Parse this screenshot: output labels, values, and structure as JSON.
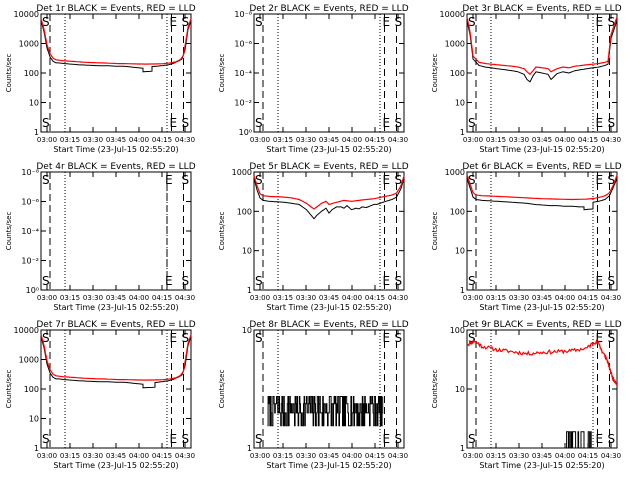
{
  "colors": {
    "events": "#000000",
    "lld": "#ff0000",
    "axes": "#000000"
  },
  "chart_data": [
    {
      "type": "line",
      "title": "Det 1r BLACK = Events, RED = LLD",
      "xlabel": "Start Time (23-Jul-15 02:55:20)",
      "ylabel": "Counts/sec",
      "x_ticks": [
        "03:00",
        "03:15",
        "03:30",
        "03:45",
        "04:00",
        "04:15",
        "04:30"
      ],
      "y_ticks": [
        "1",
        "10",
        "100",
        "1000",
        "10000"
      ],
      "ylim": [
        1,
        10000
      ],
      "yscale": "log",
      "markers": [
        {
          "label": "S",
          "x": 0.02
        },
        {
          "label": "E",
          "x": 0.87
        },
        {
          "label": "S",
          "x": 0.95
        }
      ],
      "series": [
        {
          "name": "Events",
          "x": [
            0,
            0.02,
            0.04,
            0.06,
            0.08,
            0.1,
            0.12,
            0.15,
            0.2,
            0.25,
            0.3,
            0.35,
            0.4,
            0.45,
            0.5,
            0.55,
            0.6,
            0.65,
            0.68,
            0.68,
            0.74,
            0.74,
            0.8,
            0.85,
            0.88,
            0.92,
            0.94,
            0.96,
            0.98,
            1
          ],
          "y": [
            6000,
            2500,
            700,
            350,
            250,
            220,
            220,
            210,
            200,
            190,
            185,
            180,
            175,
            175,
            170,
            170,
            160,
            150,
            145,
            110,
            115,
            165,
            175,
            190,
            210,
            260,
            300,
            600,
            3000,
            6000
          ]
        },
        {
          "name": "LLD",
          "x": [
            0,
            0.02,
            0.04,
            0.06,
            0.08,
            0.1,
            0.15,
            0.2,
            0.25,
            0.3,
            0.4,
            0.5,
            0.6,
            0.7,
            0.8,
            0.85,
            0.9,
            0.93,
            0.95,
            0.98,
            1
          ],
          "y": [
            7000,
            3000,
            900,
            450,
            320,
            280,
            260,
            250,
            240,
            230,
            220,
            210,
            205,
            200,
            205,
            215,
            240,
            290,
            400,
            3500,
            7000
          ]
        }
      ]
    },
    {
      "type": "line",
      "title": "Det 2r BLACK = Events, RED = LLD",
      "xlabel": "Start Time (23-Jul-15 02:55:20)",
      "ylabel": "Counts/sec",
      "x_ticks": [
        "03:00",
        "03:15",
        "03:30",
        "03:45",
        "04:00",
        "04:15",
        "04:30"
      ],
      "y_ticks": [
        "10⁰",
        "10⁻²",
        "10⁻⁴",
        "10⁻⁶",
        "10⁻⁸"
      ],
      "ylim": [
        1e-08,
        1
      ],
      "yscale": "log",
      "markers": [
        {
          "label": "S",
          "x": 0.02
        },
        {
          "label": "E",
          "x": 0.87
        },
        {
          "label": "S",
          "x": 0.95
        }
      ],
      "series": []
    },
    {
      "type": "line",
      "title": "Det 3r BLACK = Events, RED = LLD",
      "xlabel": "Start Time (23-Jul-15 02:55:20)",
      "ylabel": "Counts/sec",
      "x_ticks": [
        "03:00",
        "03:15",
        "03:30",
        "03:45",
        "04:00",
        "04:15",
        "04:30"
      ],
      "y_ticks": [
        "1",
        "10",
        "100",
        "1000",
        "10000"
      ],
      "ylim": [
        1,
        10000
      ],
      "yscale": "log",
      "markers": [
        {
          "label": "S",
          "x": 0.02
        },
        {
          "label": "E",
          "x": 0.87
        },
        {
          "label": "S",
          "x": 0.95
        }
      ],
      "series": [
        {
          "name": "Events",
          "x": [
            0,
            0.02,
            0.04,
            0.08,
            0.12,
            0.16,
            0.2,
            0.25,
            0.3,
            0.34,
            0.38,
            0.4,
            0.42,
            0.44,
            0.46,
            0.5,
            0.54,
            0.56,
            0.6,
            0.64,
            0.68,
            0.72,
            0.76,
            0.8,
            0.84,
            0.88,
            0.92,
            0.94,
            0.96,
            1
          ],
          "y": [
            6000,
            2000,
            300,
            180,
            160,
            150,
            140,
            130,
            120,
            110,
            90,
            60,
            50,
            80,
            110,
            100,
            90,
            60,
            95,
            110,
            100,
            120,
            130,
            140,
            150,
            160,
            180,
            200,
            1500,
            6000
          ]
        },
        {
          "name": "LLD",
          "x": [
            0,
            0.02,
            0.04,
            0.08,
            0.12,
            0.16,
            0.2,
            0.25,
            0.3,
            0.34,
            0.38,
            0.4,
            0.42,
            0.44,
            0.46,
            0.5,
            0.54,
            0.56,
            0.6,
            0.64,
            0.68,
            0.72,
            0.76,
            0.8,
            0.84,
            0.88,
            0.92,
            0.94,
            0.96,
            1
          ],
          "y": [
            8000,
            2500,
            380,
            230,
            210,
            200,
            190,
            180,
            170,
            160,
            140,
            110,
            90,
            120,
            160,
            150,
            140,
            110,
            140,
            160,
            150,
            170,
            180,
            190,
            200,
            210,
            230,
            250,
            2000,
            8000
          ]
        }
      ]
    },
    {
      "type": "line",
      "title": "Det 4r BLACK = Events, RED = LLD",
      "xlabel": "Start Time (23-Jul-15 02:55:20)",
      "ylabel": "Counts/sec",
      "x_ticks": [
        "03:00",
        "03:15",
        "03:30",
        "03:45",
        "04:00",
        "04:15",
        "04:30"
      ],
      "y_ticks": [
        "10⁰",
        "10⁻²",
        "10⁻⁴",
        "10⁻⁶",
        "10⁻⁸"
      ],
      "ylim": [
        1e-08,
        1
      ],
      "yscale": "log",
      "markers": [
        {
          "label": "S",
          "x": 0.02
        },
        {
          "label": "E",
          "x": 0.84
        },
        {
          "label": "S",
          "x": 0.95
        }
      ],
      "series": []
    },
    {
      "type": "line",
      "title": "Det 5r BLACK = Events, RED = LLD",
      "xlabel": "Start Time (23-Jul-15 02:55:20)",
      "ylabel": "Counts/sec",
      "x_ticks": [
        "03:00",
        "03:15",
        "03:30",
        "03:45",
        "04:00",
        "04:15",
        "04:30"
      ],
      "y_ticks": [
        "1",
        "10",
        "100",
        "1000"
      ],
      "ylim": [
        1,
        1000
      ],
      "yscale": "log",
      "markers": [
        {
          "label": "S",
          "x": 0.02
        },
        {
          "label": "E",
          "x": 0.87
        },
        {
          "label": "S",
          "x": 0.95
        }
      ],
      "series": [
        {
          "name": "Events",
          "x": [
            0,
            0.02,
            0.04,
            0.06,
            0.1,
            0.15,
            0.2,
            0.25,
            0.3,
            0.35,
            0.38,
            0.4,
            0.42,
            0.45,
            0.48,
            0.5,
            0.52,
            0.55,
            0.58,
            0.6,
            0.62,
            0.65,
            0.68,
            0.7,
            0.72,
            0.75,
            0.78,
            0.8,
            0.82,
            0.85,
            0.88,
            0.9,
            0.92,
            0.95,
            0.98,
            1
          ],
          "y": [
            700,
            350,
            220,
            190,
            180,
            175,
            170,
            160,
            150,
            110,
            80,
            65,
            80,
            100,
            120,
            90,
            110,
            130,
            130,
            120,
            140,
            110,
            120,
            115,
            130,
            125,
            140,
            150,
            150,
            165,
            180,
            190,
            200,
            230,
            380,
            700
          ]
        },
        {
          "name": "LLD",
          "x": [
            0,
            0.02,
            0.04,
            0.06,
            0.1,
            0.15,
            0.2,
            0.25,
            0.3,
            0.35,
            0.38,
            0.4,
            0.42,
            0.45,
            0.48,
            0.5,
            0.55,
            0.6,
            0.65,
            0.7,
            0.75,
            0.8,
            0.85,
            0.9,
            0.92,
            0.95,
            0.98,
            1
          ],
          "y": [
            800,
            450,
            280,
            250,
            240,
            235,
            230,
            220,
            200,
            160,
            130,
            115,
            130,
            160,
            180,
            150,
            170,
            190,
            180,
            190,
            200,
            210,
            230,
            250,
            260,
            290,
            450,
            800
          ]
        }
      ]
    },
    {
      "type": "line",
      "title": "Det 6r BLACK = Events, RED = LLD",
      "xlabel": "Start Time (23-Jul-15 02:55:20)",
      "ylabel": "Counts/sec",
      "x_ticks": [
        "03:00",
        "03:15",
        "03:30",
        "03:45",
        "04:00",
        "04:15",
        "04:30"
      ],
      "y_ticks": [
        "1",
        "10",
        "100",
        "1000"
      ],
      "ylim": [
        1,
        1000
      ],
      "yscale": "log",
      "markers": [
        {
          "label": "S",
          "x": 0.02
        },
        {
          "label": "E",
          "x": 0.87
        },
        {
          "label": "S",
          "x": 0.95
        }
      ],
      "series": [
        {
          "name": "Events",
          "x": [
            0,
            0.02,
            0.04,
            0.06,
            0.1,
            0.15,
            0.2,
            0.25,
            0.3,
            0.35,
            0.4,
            0.45,
            0.5,
            0.55,
            0.6,
            0.65,
            0.7,
            0.75,
            0.78,
            0.78,
            0.84,
            0.84,
            0.88,
            0.92,
            0.95,
            0.98,
            1
          ],
          "y": [
            700,
            400,
            230,
            200,
            190,
            185,
            180,
            175,
            170,
            165,
            160,
            150,
            145,
            140,
            140,
            135,
            135,
            130,
            130,
            110,
            115,
            170,
            180,
            200,
            250,
            450,
            700
          ]
        },
        {
          "name": "LLD",
          "x": [
            0,
            0.02,
            0.04,
            0.06,
            0.1,
            0.15,
            0.2,
            0.3,
            0.4,
            0.5,
            0.6,
            0.7,
            0.8,
            0.85,
            0.9,
            0.93,
            0.95,
            0.98,
            1
          ],
          "y": [
            850,
            500,
            300,
            260,
            250,
            245,
            240,
            230,
            220,
            210,
            205,
            200,
            205,
            215,
            235,
            260,
            300,
            500,
            850
          ]
        }
      ]
    },
    {
      "type": "line",
      "title": "Det 7r BLACK = Events, RED = LLD",
      "xlabel": "Start Time (23-Jul-15 02:55:20)",
      "ylabel": "Counts/sec",
      "x_ticks": [
        "03:00",
        "03:15",
        "03:30",
        "03:45",
        "04:00",
        "04:15",
        "04:30"
      ],
      "y_ticks": [
        "1",
        "10",
        "100",
        "1000",
        "10000"
      ],
      "ylim": [
        1,
        10000
      ],
      "yscale": "log",
      "markers": [
        {
          "label": "S",
          "x": 0.02
        },
        {
          "label": "E",
          "x": 0.87
        },
        {
          "label": "S",
          "x": 0.95
        }
      ],
      "series": [
        {
          "name": "Events",
          "x": [
            0,
            0.02,
            0.04,
            0.06,
            0.08,
            0.1,
            0.12,
            0.15,
            0.2,
            0.25,
            0.3,
            0.35,
            0.4,
            0.45,
            0.5,
            0.55,
            0.6,
            0.65,
            0.68,
            0.68,
            0.76,
            0.76,
            0.8,
            0.85,
            0.88,
            0.92,
            0.94,
            0.96,
            0.98,
            1
          ],
          "y": [
            6000,
            2500,
            700,
            350,
            250,
            220,
            220,
            210,
            200,
            190,
            185,
            180,
            175,
            175,
            170,
            170,
            160,
            150,
            145,
            110,
            115,
            165,
            175,
            190,
            210,
            260,
            300,
            600,
            3000,
            6000
          ]
        },
        {
          "name": "LLD",
          "x": [
            0,
            0.02,
            0.04,
            0.06,
            0.08,
            0.1,
            0.15,
            0.2,
            0.25,
            0.3,
            0.4,
            0.5,
            0.6,
            0.7,
            0.8,
            0.85,
            0.9,
            0.93,
            0.95,
            0.98,
            1
          ],
          "y": [
            7000,
            3000,
            900,
            450,
            320,
            280,
            260,
            250,
            240,
            230,
            220,
            210,
            205,
            200,
            205,
            215,
            240,
            290,
            400,
            3500,
            7000
          ]
        }
      ]
    },
    {
      "type": "line",
      "title": "Det 8r BLACK = Events, RED = LLD",
      "xlabel": "Start Time (23-Jul-15 02:55:20)",
      "ylabel": "Counts/sec",
      "x_ticks": [
        "03:00",
        "03:15",
        "03:30",
        "03:45",
        "04:00",
        "04:15",
        "04:30"
      ],
      "y_ticks": [
        "1",
        "10"
      ],
      "ylim": [
        1,
        40
      ],
      "yscale": "log",
      "markers": [
        {
          "label": "S",
          "x": 0.02
        },
        {
          "label": "E",
          "x": 0.87
        },
        {
          "label": "S",
          "x": 0.95
        }
      ],
      "series": [
        {
          "name": "Events",
          "noisy": true,
          "x_range": [
            0.09,
            0.86
          ],
          "y_values": [
            2,
            3,
            4,
            5
          ],
          "seed": 7
        }
      ]
    },
    {
      "type": "line",
      "title": "Det 9r BLACK = Events, RED = LLD",
      "xlabel": "Start Time (23-Jul-15 02:55:20)",
      "ylabel": "Counts/sec",
      "x_ticks": [
        "03:00",
        "03:15",
        "03:30",
        "03:45",
        "04:00",
        "04:15",
        "04:30"
      ],
      "y_ticks": [
        "1",
        "10",
        "100"
      ],
      "ylim": [
        1,
        150
      ],
      "yscale": "log",
      "markers": [
        {
          "label": "S",
          "x": 0.02
        },
        {
          "label": "E",
          "x": 0.87
        },
        {
          "label": "S",
          "x": 0.95
        }
      ],
      "series": [
        {
          "name": "LLD",
          "noisy_line": true,
          "x": [
            0,
            0.05,
            0.1,
            0.2,
            0.3,
            0.4,
            0.5,
            0.6,
            0.7,
            0.8,
            0.85,
            0.88,
            0.9,
            0.93,
            0.95,
            0.97,
            1
          ],
          "y": [
            80,
            95,
            75,
            65,
            60,
            55,
            58,
            60,
            62,
            70,
            90,
            85,
            60,
            45,
            30,
            20,
            15
          ],
          "seed": 11
        },
        {
          "name": "Events",
          "noisy": true,
          "x_range": [
            0.66,
            0.83
          ],
          "y_values": [
            1,
            2
          ],
          "seed": 3
        }
      ]
    }
  ]
}
